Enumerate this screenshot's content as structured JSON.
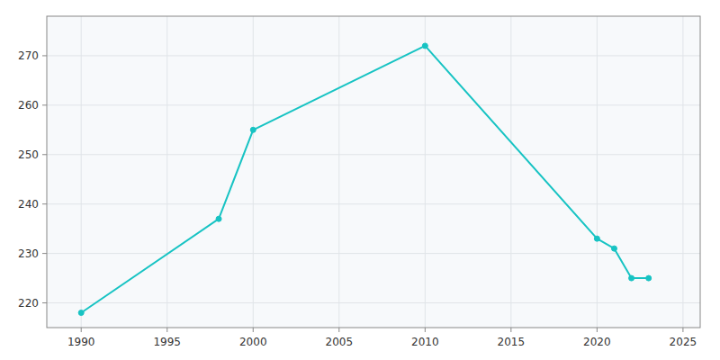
{
  "chart_data": {
    "type": "line",
    "x": [
      1990,
      1998,
      2000,
      2010,
      2020,
      2021,
      2022,
      2023
    ],
    "values": [
      218,
      237,
      255,
      272,
      233,
      231,
      225,
      225
    ],
    "color": "#17c3c3",
    "marker": "circle",
    "xlim": [
      1988,
      2026
    ],
    "ylim": [
      215,
      278
    ],
    "xticks": [
      1990,
      1995,
      2000,
      2005,
      2010,
      2015,
      2020,
      2025
    ],
    "yticks": [
      220,
      230,
      240,
      250,
      260,
      270
    ],
    "grid": true
  }
}
